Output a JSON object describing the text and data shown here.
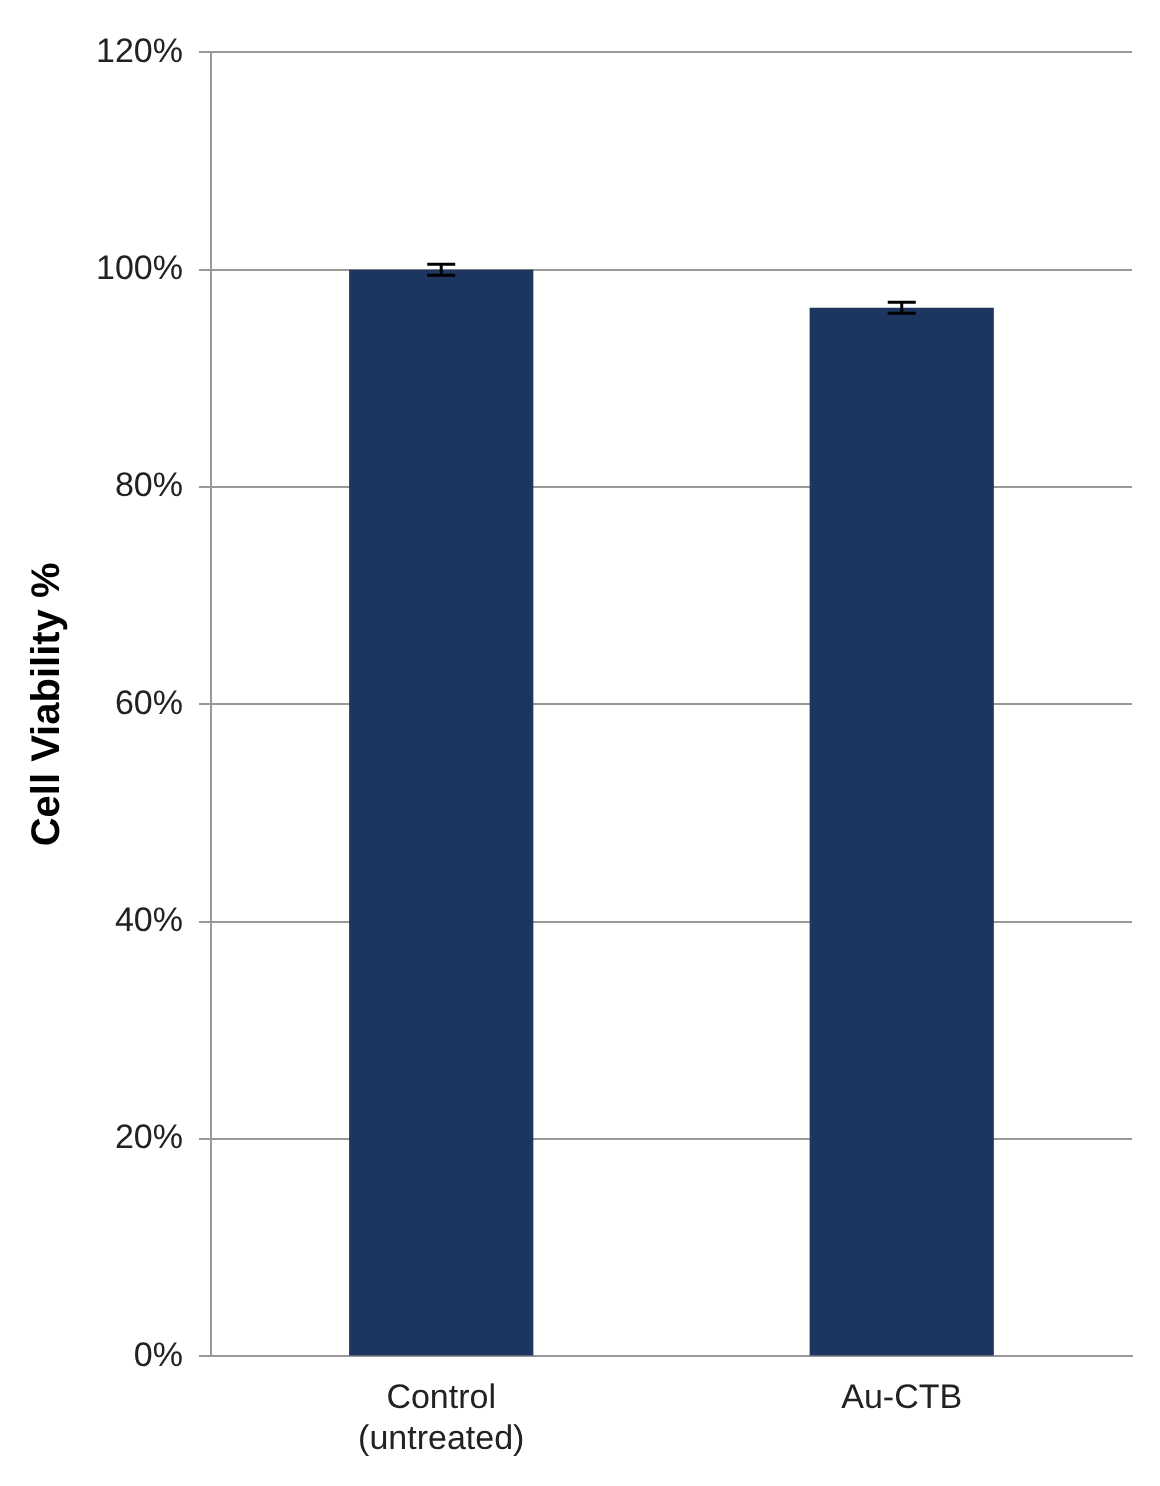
{
  "chart_data": {
    "type": "bar",
    "ylabel": "Cell Viability %",
    "categories": [
      "Control (untreated)",
      "Au-CTB"
    ],
    "values": [
      100,
      96.5
    ],
    "errors": [
      0.5,
      0.5
    ],
    "color": "#1c3660",
    "ylim": [
      0,
      120
    ],
    "yticks": [
      {
        "value": 0,
        "label": "0%"
      },
      {
        "value": 20,
        "label": "20%"
      },
      {
        "value": 40,
        "label": "40%"
      },
      {
        "value": 60,
        "label": "60%"
      },
      {
        "value": 80,
        "label": "80%"
      },
      {
        "value": 100,
        "label": "100%"
      },
      {
        "value": 120,
        "label": "120%"
      }
    ],
    "grid": "y",
    "legend": false
  }
}
